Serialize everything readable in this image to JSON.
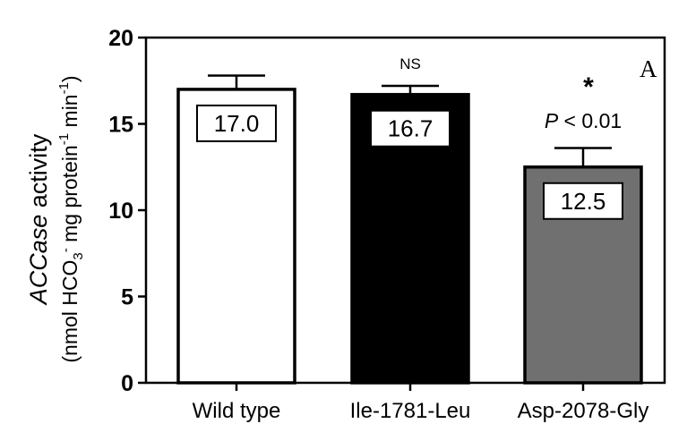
{
  "chart_data": {
    "type": "bar",
    "panel_label": "A",
    "ylabel": {
      "line1_italic": "ACCase",
      "line1_rest": " activity",
      "line2_pre": "(nmol HCO",
      "line2_sub": "3",
      "line2_sup": "-",
      "line2_mid": " mg protein",
      "line2_sup2": "-1",
      "line2_mid2": " min",
      "line2_sup3": "-1",
      "line2_post": ")"
    },
    "ylim": [
      0,
      20
    ],
    "yticks": [
      "0",
      "5",
      "10",
      "15",
      "20"
    ],
    "categories": [
      "Wild type",
      "Ile-1781-Leu",
      "Asp-2078-Gly"
    ],
    "values": [
      17.0,
      16.7,
      12.5
    ],
    "value_labels": [
      "17.0",
      "16.7",
      "12.5"
    ],
    "errors": [
      0.8,
      0.5,
      1.1
    ],
    "bar_colors": [
      "#ffffff",
      "#000000",
      "#707070"
    ],
    "annotations": [
      {
        "text": "",
        "italic": "",
        "rest": ""
      },
      {
        "text": "NS",
        "italic": "",
        "rest": ""
      },
      {
        "text": "*",
        "italic": "P",
        "rest": " < 0.01"
      }
    ]
  }
}
